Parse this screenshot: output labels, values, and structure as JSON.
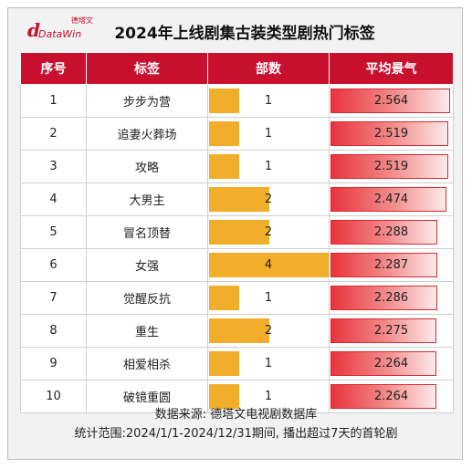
{
  "logo": {
    "mark": "d",
    "sub": "德塔文",
    "brand": "DataWin"
  },
  "title": "2024年上线剧集古装类型剧热门标签",
  "columns": [
    "序号",
    "标签",
    "部数",
    "平均景气"
  ],
  "colors": {
    "header": "#c8102e",
    "count_bar": "#f0ae2a",
    "score_bar": "#e8343b"
  },
  "chart_data": {
    "type": "table",
    "count_max": 4,
    "score_max": 2.6,
    "rows": [
      {
        "rank": "1",
        "tag": "步步为营",
        "count": 1,
        "count_label": "1",
        "score": 2.564,
        "score_label": "2.564"
      },
      {
        "rank": "2",
        "tag": "追妻火葬场",
        "count": 1,
        "count_label": "1",
        "score": 2.519,
        "score_label": "2.519"
      },
      {
        "rank": "3",
        "tag": "攻略",
        "count": 1,
        "count_label": "1",
        "score": 2.519,
        "score_label": "2.519"
      },
      {
        "rank": "4",
        "tag": "大男主",
        "count": 2,
        "count_label": "2",
        "score": 2.474,
        "score_label": "2.474"
      },
      {
        "rank": "5",
        "tag": "冒名顶替",
        "count": 2,
        "count_label": "2",
        "score": 2.288,
        "score_label": "2.288"
      },
      {
        "rank": "6",
        "tag": "女强",
        "count": 4,
        "count_label": "4",
        "score": 2.287,
        "score_label": "2.287"
      },
      {
        "rank": "7",
        "tag": "觉醒反抗",
        "count": 1,
        "count_label": "1",
        "score": 2.286,
        "score_label": "2.286"
      },
      {
        "rank": "8",
        "tag": "重生",
        "count": 2,
        "count_label": "2",
        "score": 2.275,
        "score_label": "2.275"
      },
      {
        "rank": "9",
        "tag": "相爱相杀",
        "count": 1,
        "count_label": "1",
        "score": 2.264,
        "score_label": "2.264"
      },
      {
        "rank": "10",
        "tag": "破镜重圆",
        "count": 1,
        "count_label": "1",
        "score": 2.264,
        "score_label": "2.264"
      }
    ]
  },
  "footer": {
    "source": "数据来源: 德塔文电视剧数据库",
    "range": "统计范围:2024/1/1-2024/12/31期间, 播出超过7天的首轮剧"
  }
}
